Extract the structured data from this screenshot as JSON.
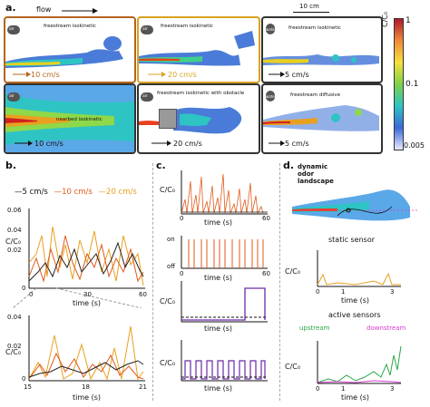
{
  "panel_a": {
    "label": "a.",
    "flow_label": "flow",
    "scale_label": "10 cm",
    "tiles": [
      {
        "caption": "freestream isokinetic",
        "fluid": "air",
        "velocity": "10 cm/s",
        "border": "#b5651d"
      },
      {
        "caption": "freestream isokinetic",
        "fluid": "air",
        "velocity": "20 cm/s",
        "border": "#d6a422"
      },
      {
        "caption": "freestream isokinetic",
        "fluid": "water",
        "velocity": "5 cm/s",
        "border": "#333333"
      },
      {
        "caption": "nearbed isokinetic",
        "fluid": "air",
        "velocity": "10 cm/s",
        "border": "#333333"
      },
      {
        "caption": "freestream isokinetic with obstacle",
        "fluid": "air",
        "velocity": "20 cm/s",
        "border": "#333333"
      },
      {
        "caption": "freestream diffusive",
        "fluid": "water",
        "velocity": "5 cm/s",
        "border": "#333333"
      }
    ],
    "colorbar": {
      "label": "C/C₀",
      "ticks": [
        "1",
        "0.1",
        "0.005"
      ]
    }
  },
  "panel_b": {
    "label": "b.",
    "legend": [
      "5 cm/s",
      "10 cm/s",
      "20 cm/s"
    ],
    "legend_colors": [
      "#222222",
      "#e05a1a",
      "#e8a020"
    ],
    "top": {
      "ylabel": "C/C₀",
      "yticks": [
        "0.06",
        "0.04",
        "0.02",
        "0"
      ],
      "xticks": [
        "0",
        "30",
        "60"
      ],
      "xlabel": "time (s)"
    },
    "bottom": {
      "ylabel": "C/C₀",
      "yticks": [
        "0.04",
        "0.02",
        "0"
      ],
      "xticks": [
        "15",
        "18",
        "21"
      ],
      "xlabel": "time (s)"
    }
  },
  "panel_c": {
    "label": "c.",
    "plots": [
      {
        "ylabel": "C/C₀",
        "xticks": [
          "0",
          "60"
        ],
        "xlabel": "time (s)"
      },
      {
        "yticks": [
          "on",
          "off"
        ],
        "xticks": [
          "0",
          "60"
        ],
        "xlabel": "time (s)"
      },
      {
        "ylabel": "C/C₀",
        "xlabel": "time (s)"
      },
      {
        "ylabel": "C/C₀",
        "xlabel": "time (s)"
      }
    ]
  },
  "panel_d": {
    "label": "d.",
    "title_lines": [
      "dynamic",
      "odor",
      "landscape"
    ],
    "static_label": "static sensor",
    "active_label": "active sensors",
    "upstream": "upstream",
    "downstream": "downstream",
    "plot1": {
      "ylabel": "C/C₀",
      "xticks": [
        "0",
        "1",
        "3"
      ],
      "xlabel": "time (s)"
    },
    "plot2": {
      "ylabel": "C/C₀",
      "xticks": [
        "0",
        "1",
        "3"
      ],
      "xlabel": "time (s)"
    }
  },
  "colors": {
    "upstream": "#2aa845",
    "downstream": "#d63ad0",
    "purple": "#6a2aa8",
    "orange": "#e05a1a",
    "gold": "#e8a020"
  }
}
